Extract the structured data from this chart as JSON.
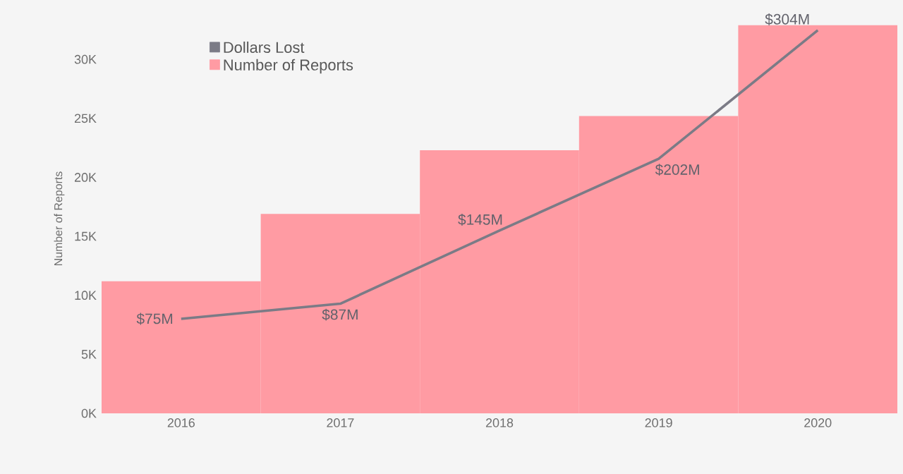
{
  "chart_data": {
    "type": "bar",
    "ylabel": "Number of Reports",
    "categories": [
      "2016",
      "2017",
      "2018",
      "2019",
      "2020"
    ],
    "series": [
      {
        "name": "Dollars Lost",
        "type": "line",
        "axis": "y2",
        "color": "#7b7b86",
        "values": [
          75,
          87,
          145,
          202,
          304
        ],
        "value_labels": [
          "$75M",
          "$87M",
          "$145M",
          "$202M",
          "$304M"
        ]
      },
      {
        "name": "Number of Reports",
        "color": "#ff9ba3",
        "values": [
          11200,
          16900,
          22300,
          25200,
          32900
        ]
      }
    ],
    "ylim": [
      0,
      33000
    ],
    "yticks": [
      {
        "value": 0,
        "label": "0K"
      },
      {
        "value": 5000,
        "label": "5K"
      },
      {
        "value": 10000,
        "label": "10K"
      },
      {
        "value": 15000,
        "label": "15K"
      },
      {
        "value": 20000,
        "label": "20K"
      },
      {
        "value": 25000,
        "label": "25K"
      },
      {
        "value": 30000,
        "label": "30K"
      }
    ],
    "y2lim": [
      0,
      309
    ],
    "legend": "top left",
    "grid": false,
    "marker": "none",
    "line_style": "solid"
  }
}
